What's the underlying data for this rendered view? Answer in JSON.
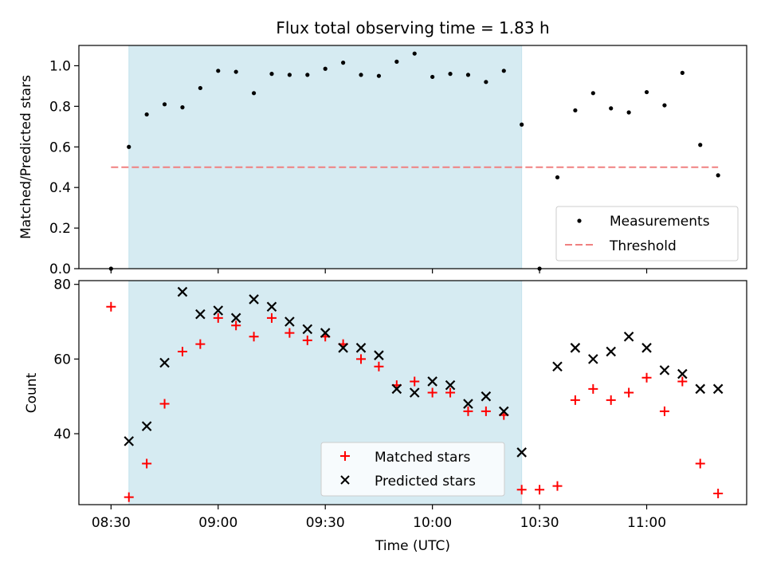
{
  "chart_data": [
    {
      "type": "scatter",
      "title": "Flux total observing time = 1.83 h",
      "ylabel": "Matched/Predicted stars",
      "xlabel": "",
      "ylim": [
        0,
        1.1
      ],
      "yticks": [
        0.0,
        0.2,
        0.4,
        0.6,
        0.8,
        1.0
      ],
      "ytick_labels": [
        "0.0",
        "0.2",
        "0.4",
        "0.6",
        "0.8",
        "1.0"
      ],
      "shaded_interval": [
        "08:35",
        "10:25"
      ],
      "series": [
        {
          "name": "Measurements",
          "marker": "dot",
          "color": "#000000",
          "x": [
            "08:30",
            "08:35",
            "08:40",
            "08:45",
            "08:50",
            "08:55",
            "09:00",
            "09:05",
            "09:10",
            "09:15",
            "09:20",
            "09:25",
            "09:30",
            "09:35",
            "09:40",
            "09:45",
            "09:50",
            "09:55",
            "10:00",
            "10:05",
            "10:10",
            "10:15",
            "10:20",
            "10:25",
            "10:30",
            "10:35",
            "10:40",
            "10:45",
            "10:50",
            "10:55",
            "11:00",
            "11:05",
            "11:10",
            "11:15",
            "11:20"
          ],
          "values": [
            0.0,
            0.6,
            0.76,
            0.81,
            0.795,
            0.89,
            0.975,
            0.97,
            0.865,
            0.96,
            0.955,
            0.955,
            0.985,
            1.015,
            0.955,
            0.95,
            1.02,
            1.06,
            0.945,
            0.96,
            0.955,
            0.92,
            0.975,
            0.71,
            0.0,
            0.45,
            0.78,
            0.865,
            0.79,
            0.77,
            0.87,
            0.805,
            0.965,
            0.61,
            0.46
          ]
        },
        {
          "name": "Threshold",
          "style": "dashed",
          "color": "#f08080",
          "x": [
            "08:30",
            "11:20"
          ],
          "values": [
            0.5,
            0.5
          ]
        }
      ],
      "legend": "lower-right"
    },
    {
      "type": "scatter",
      "title": "",
      "ylabel": "Count",
      "xlabel": "Time (UTC)",
      "ylim": [
        21,
        81
      ],
      "yticks": [
        40,
        60,
        80
      ],
      "ytick_labels": [
        "40",
        "60",
        "80"
      ],
      "xlim": [
        "08:21",
        "11:28"
      ],
      "xticks": [
        "08:30",
        "09:00",
        "09:30",
        "10:00",
        "10:30",
        "11:00"
      ],
      "xtick_labels": [
        "08:30",
        "09:00",
        "09:30",
        "10:00",
        "10:30",
        "11:00"
      ],
      "shaded_interval": [
        "08:35",
        "10:25"
      ],
      "series": [
        {
          "name": "Matched stars",
          "marker": "plus",
          "color": "#ff0000",
          "x": [
            "08:30",
            "08:35",
            "08:40",
            "08:45",
            "08:50",
            "08:55",
            "09:00",
            "09:05",
            "09:10",
            "09:15",
            "09:20",
            "09:25",
            "09:30",
            "09:35",
            "09:40",
            "09:45",
            "09:50",
            "09:55",
            "10:00",
            "10:05",
            "10:10",
            "10:15",
            "10:20",
            "10:25",
            "10:30",
            "10:35",
            "10:40",
            "10:45",
            "10:50",
            "10:55",
            "11:00",
            "11:05",
            "11:10",
            "11:15",
            "11:20"
          ],
          "values": [
            74,
            23,
            32,
            48,
            62,
            64,
            71,
            69,
            66,
            71,
            67,
            65,
            66,
            64,
            60,
            58,
            53,
            54,
            51,
            51,
            46,
            46,
            45,
            25,
            25,
            26,
            49,
            52,
            49,
            51,
            55,
            46,
            54,
            32,
            24
          ]
        },
        {
          "name": "Predicted stars",
          "marker": "x",
          "color": "#000000",
          "x": [
            "08:35",
            "08:40",
            "08:45",
            "08:50",
            "08:55",
            "09:00",
            "09:05",
            "09:10",
            "09:15",
            "09:20",
            "09:25",
            "09:30",
            "09:35",
            "09:40",
            "09:45",
            "09:50",
            "09:55",
            "10:00",
            "10:05",
            "10:10",
            "10:15",
            "10:20",
            "10:25",
            "10:35",
            "10:40",
            "10:45",
            "10:50",
            "10:55",
            "11:00",
            "11:05",
            "11:10",
            "11:15",
            "11:20"
          ],
          "values": [
            38,
            42,
            59,
            78,
            72,
            73,
            71,
            76,
            74,
            70,
            68,
            67,
            63,
            63,
            61,
            52,
            51,
            54,
            53,
            48,
            50,
            46,
            35,
            58,
            63,
            60,
            62,
            66,
            63,
            57,
            56,
            52,
            52
          ]
        }
      ],
      "legend": "bottom-center"
    }
  ]
}
